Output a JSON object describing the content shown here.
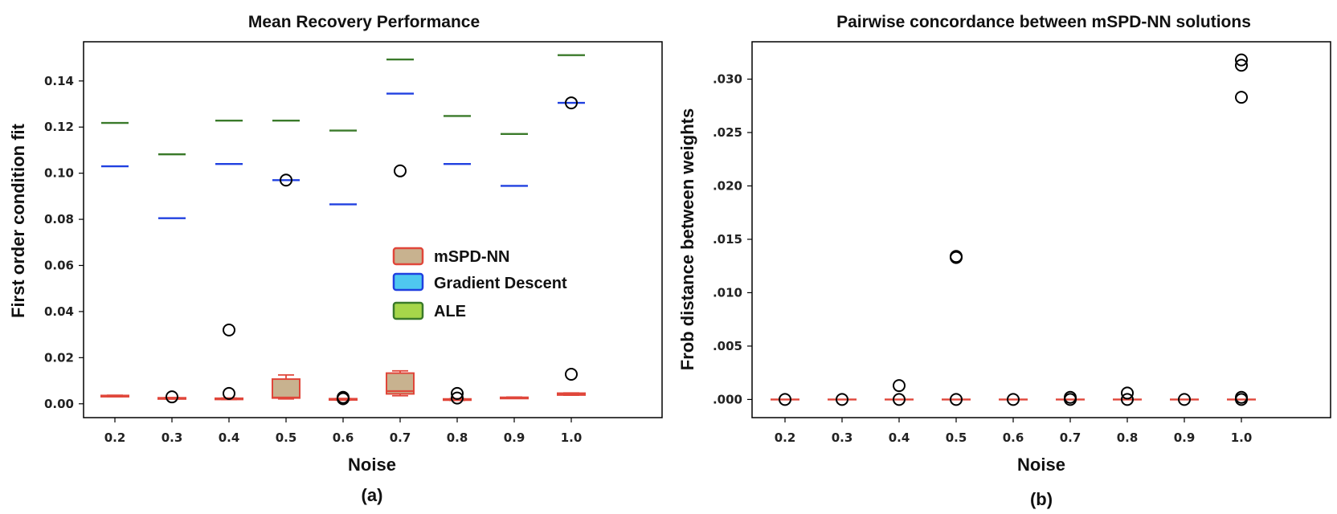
{
  "chart_data": [
    {
      "type": "box",
      "title": "Mean Recovery Performance",
      "xlabel": "Noise",
      "ylabel": "First order condition fit",
      "caption": "(a)",
      "categories": [
        "0.2",
        "0.3",
        "0.4",
        "0.5",
        "0.6",
        "0.7",
        "0.8",
        "0.9",
        "1.0"
      ],
      "ylim": [
        -0.006,
        0.157
      ],
      "yticks": [
        0.0,
        0.02,
        0.04,
        0.06,
        0.08,
        0.1,
        0.12,
        0.14
      ],
      "ytick_labels": [
        "0.00",
        "0.02",
        "0.04",
        "0.06",
        "0.08",
        "0.10",
        "0.12",
        "0.14"
      ],
      "legend": {
        "position": "center-right",
        "entries": [
          {
            "label": "mSPD-NN",
            "fill": "#c8b28f",
            "edge": "#e0463a"
          },
          {
            "label": "Gradient Descent",
            "fill": "#4fc8f0",
            "edge": "#2040e0"
          },
          {
            "label": "ALE",
            "fill": "#a6d64a",
            "edge": "#3a7a2a"
          }
        ]
      },
      "series": [
        {
          "name": "mSPD-NN",
          "kind": "box",
          "edge": "#e0463a",
          "fill": "#c8b28f",
          "boxes": [
            {
              "q1": 0.0032,
              "q3": 0.0036,
              "wlo": 0.0031,
              "whi": 0.0037,
              "median": 0.0034
            },
            {
              "q1": 0.0022,
              "q3": 0.0026,
              "wlo": 0.0021,
              "whi": 0.0027,
              "median": 0.0024
            },
            {
              "q1": 0.002,
              "q3": 0.0024,
              "wlo": 0.0019,
              "whi": 0.0025,
              "median": 0.0022
            },
            {
              "q1": 0.0025,
              "q3": 0.0107,
              "wlo": 0.0021,
              "whi": 0.0125,
              "median": 0.0027
            },
            {
              "q1": 0.0017,
              "q3": 0.0022,
              "wlo": 0.0016,
              "whi": 0.0023,
              "median": 0.0019
            },
            {
              "q1": 0.0043,
              "q3": 0.0133,
              "wlo": 0.0035,
              "whi": 0.0143,
              "median": 0.0055
            },
            {
              "q1": 0.0016,
              "q3": 0.0021,
              "wlo": 0.0015,
              "whi": 0.0022,
              "median": 0.0018
            },
            {
              "q1": 0.0025,
              "q3": 0.0028,
              "wlo": 0.0024,
              "whi": 0.0029,
              "median": 0.0026
            },
            {
              "q1": 0.0038,
              "q3": 0.0046,
              "wlo": 0.0037,
              "whi": 0.0047,
              "median": 0.0042
            }
          ],
          "outliers": [
            {
              "x": "0.3",
              "y": 0.003
            },
            {
              "x": "0.4",
              "y": 0.0045
            },
            {
              "x": "0.4",
              "y": 0.032
            },
            {
              "x": "0.6",
              "y": 0.0022
            },
            {
              "x": "0.6",
              "y": 0.0028
            },
            {
              "x": "0.7",
              "y": 0.101
            },
            {
              "x": "0.8",
              "y": 0.0025
            },
            {
              "x": "0.8",
              "y": 0.0045
            },
            {
              "x": "1.0",
              "y": 0.0128
            }
          ]
        },
        {
          "name": "Gradient Descent",
          "kind": "median-line",
          "color": "#2040e0",
          "values": [
            0.103,
            0.0805,
            0.104,
            0.097,
            0.0865,
            0.1345,
            0.104,
            0.0945,
            0.1305
          ],
          "outliers": [
            {
              "x": "0.5",
              "y": 0.097
            },
            {
              "x": "1.0",
              "y": 0.1305
            }
          ]
        },
        {
          "name": "ALE",
          "kind": "median-line",
          "color": "#3a7a2a",
          "values": [
            0.1218,
            0.1082,
            0.1228,
            0.1228,
            0.1185,
            0.1493,
            0.1248,
            0.117,
            0.1512
          ],
          "outliers": []
        }
      ]
    },
    {
      "type": "box",
      "title": "Pairwise concordance between mSPD-NN solutions",
      "xlabel": "Noise",
      "ylabel": "Frob distance between weights",
      "caption": "(b)",
      "categories": [
        "0.2",
        "0.3",
        "0.4",
        "0.5",
        "0.6",
        "0.7",
        "0.8",
        "0.9",
        "1.0"
      ],
      "ylim": [
        -0.0017,
        0.0335
      ],
      "yticks": [
        0.0,
        0.005,
        0.01,
        0.015,
        0.02,
        0.025,
        0.03
      ],
      "ytick_labels": [
        ".000",
        ".005",
        ".010",
        ".015",
        ".020",
        ".025",
        ".030"
      ],
      "series": [
        {
          "name": "mSPD-NN",
          "kind": "median-line",
          "color": "#e0463a",
          "values": [
            0,
            0,
            0,
            0,
            0,
            0,
            0,
            0,
            0
          ],
          "outliers": [
            {
              "x": "0.2",
              "y": 0.0
            },
            {
              "x": "0.3",
              "y": 0.0
            },
            {
              "x": "0.4",
              "y": 0.0
            },
            {
              "x": "0.4",
              "y": 0.0013
            },
            {
              "x": "0.5",
              "y": 0.0
            },
            {
              "x": "0.5",
              "y": 0.0133
            },
            {
              "x": "0.5",
              "y": 0.0134
            },
            {
              "x": "0.6",
              "y": 0.0
            },
            {
              "x": "0.7",
              "y": 0.0
            },
            {
              "x": "0.7",
              "y": 0.0002
            },
            {
              "x": "0.8",
              "y": 0.0
            },
            {
              "x": "0.8",
              "y": 0.0006
            },
            {
              "x": "0.9",
              "y": 0.0
            },
            {
              "x": "1.0",
              "y": 0.0
            },
            {
              "x": "1.0",
              "y": 0.0002
            },
            {
              "x": "1.0",
              "y": 0.0283
            },
            {
              "x": "1.0",
              "y": 0.0313
            },
            {
              "x": "1.0",
              "y": 0.0318
            }
          ]
        }
      ]
    }
  ]
}
